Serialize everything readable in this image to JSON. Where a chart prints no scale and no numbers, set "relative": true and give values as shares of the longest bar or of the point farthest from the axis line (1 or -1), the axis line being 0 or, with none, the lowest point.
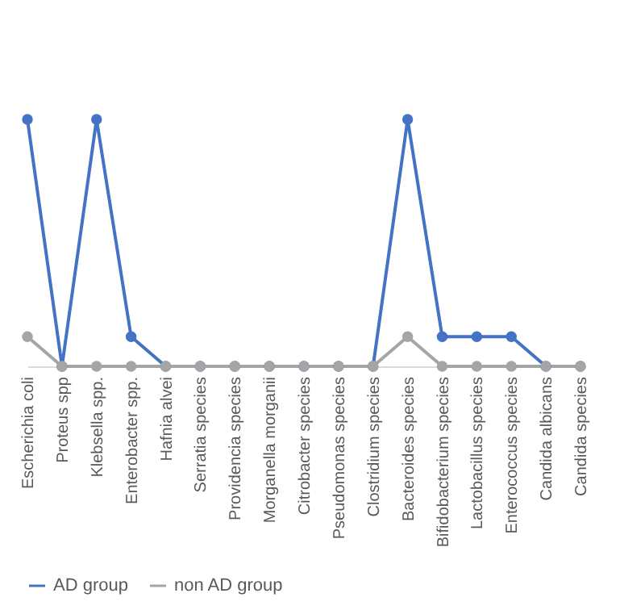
{
  "chart_data": {
    "type": "line",
    "relative": true,
    "categories": [
      "Escherichia coli",
      "Proteus spp",
      "Klebsella spp.",
      "Enterobacter spp.",
      "Hafnia alvei",
      "Serratia species",
      "Providencia species",
      "Morganella morganii",
      "Citrobacter species",
      "Pseudomonas species",
      "Clostridium species",
      "Bacteroides species",
      "Bifidobacterium species",
      "Lactobacillus species",
      "Enterococcus species",
      "Candida albicans",
      "Candida species"
    ],
    "series": [
      {
        "name": "AD group",
        "color": "#4472c4",
        "values": [
          1,
          0,
          1,
          0.12,
          0,
          0,
          0,
          0,
          0,
          0,
          0,
          1,
          0.12,
          0.12,
          0.12,
          0,
          0
        ]
      },
      {
        "name": "non AD group",
        "color": "#a5a5a5",
        "values": [
          0.12,
          0,
          0,
          0,
          0,
          0,
          0,
          0,
          0,
          0,
          0,
          0.12,
          0,
          0,
          0,
          0,
          0
        ]
      }
    ],
    "marker": "circle",
    "grid": false,
    "legend": "bottom"
  }
}
